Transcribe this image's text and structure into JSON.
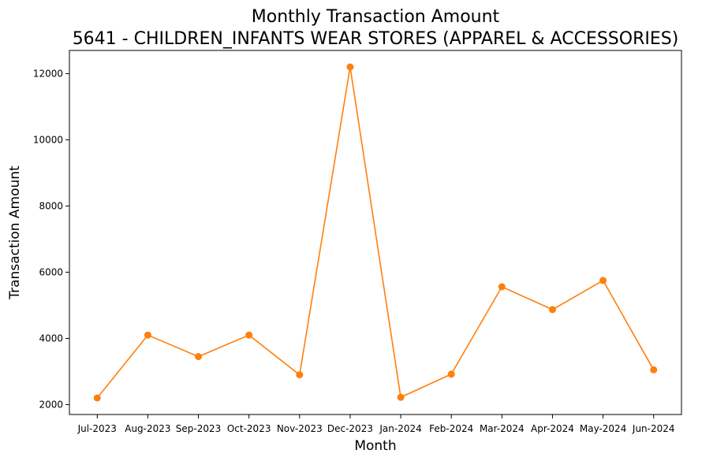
{
  "chart_data": {
    "type": "line",
    "title": "Monthly Transaction Amount",
    "subtitle": "5641 - CHILDREN_INFANTS WEAR STORES (APPAREL & ACCESSORIES)",
    "xlabel": "Month",
    "ylabel": "Transaction Amount",
    "categories": [
      "Jul-2023",
      "Aug-2023",
      "Sep-2023",
      "Oct-2023",
      "Nov-2023",
      "Dec-2023",
      "Jan-2024",
      "Feb-2024",
      "Mar-2024",
      "Apr-2024",
      "May-2024",
      "Jun-2024"
    ],
    "series": [
      {
        "values": [
          2200,
          4100,
          3450,
          4100,
          2900,
          12200,
          2220,
          2920,
          5560,
          4870,
          5750,
          3050
        ],
        "color": "#ff7f0e",
        "marker": "circle"
      }
    ],
    "ylim": [
      1700,
      12700
    ],
    "yticks": [
      2000,
      4000,
      6000,
      8000,
      10000,
      12000
    ],
    "grid": false,
    "legend": "none"
  }
}
